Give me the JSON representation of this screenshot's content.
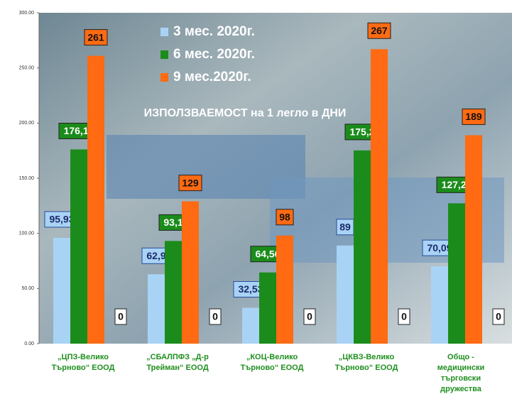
{
  "chart_data": {
    "type": "bar",
    "title": "ИЗПОЛЗВАЕМОСТ на 1 легло в ДНИ",
    "categories": [
      "„ЦПЗ-Велико\nТърново“ ЕООД",
      "„СБАЛПФЗ „Д-р\nТрейман“ ЕООД",
      "„КОЦ-Велико\nТърново“ ЕООД",
      "„ЦКВЗ-Велико\nТърново“ ЕООД",
      "Общо -\nмедицински\nтърговски\nдружества"
    ],
    "series": [
      {
        "name": "3 мес. 2020г.",
        "color": "#a9d3f5",
        "values": [
          95.93,
          62.9,
          32.53,
          89,
          70.09
        ],
        "value_labels": [
          "95,93",
          "62,9",
          "32,53",
          "89",
          "70,09"
        ]
      },
      {
        "name": "6 мес. 2020г.",
        "color": "#1b8c1b",
        "values": [
          176.1,
          93.1,
          64.56,
          175.2,
          127.24
        ],
        "value_labels": [
          "176,10",
          "93,1",
          "64,56",
          "175,2",
          "127,24"
        ]
      },
      {
        "name": "9 мес.2020г.",
        "color": "#ff6a12",
        "values": [
          261,
          129,
          98,
          267,
          189
        ]
      },
      {
        "color": "#ffffff",
        "values": [
          0,
          0,
          0,
          0,
          0
        ]
      }
    ],
    "ylim": [
      0,
      300
    ],
    "yticks": [
      {
        "value": 0,
        "label": "0.00"
      },
      {
        "value": 50,
        "label": "50.00"
      },
      {
        "value": 100,
        "label": "100.00"
      },
      {
        "value": 150,
        "label": "150.00"
      },
      {
        "value": 200,
        "label": "200.00"
      },
      {
        "value": 250,
        "label": "250.00"
      },
      {
        "value": 300,
        "label": "300.00"
      }
    ]
  }
}
